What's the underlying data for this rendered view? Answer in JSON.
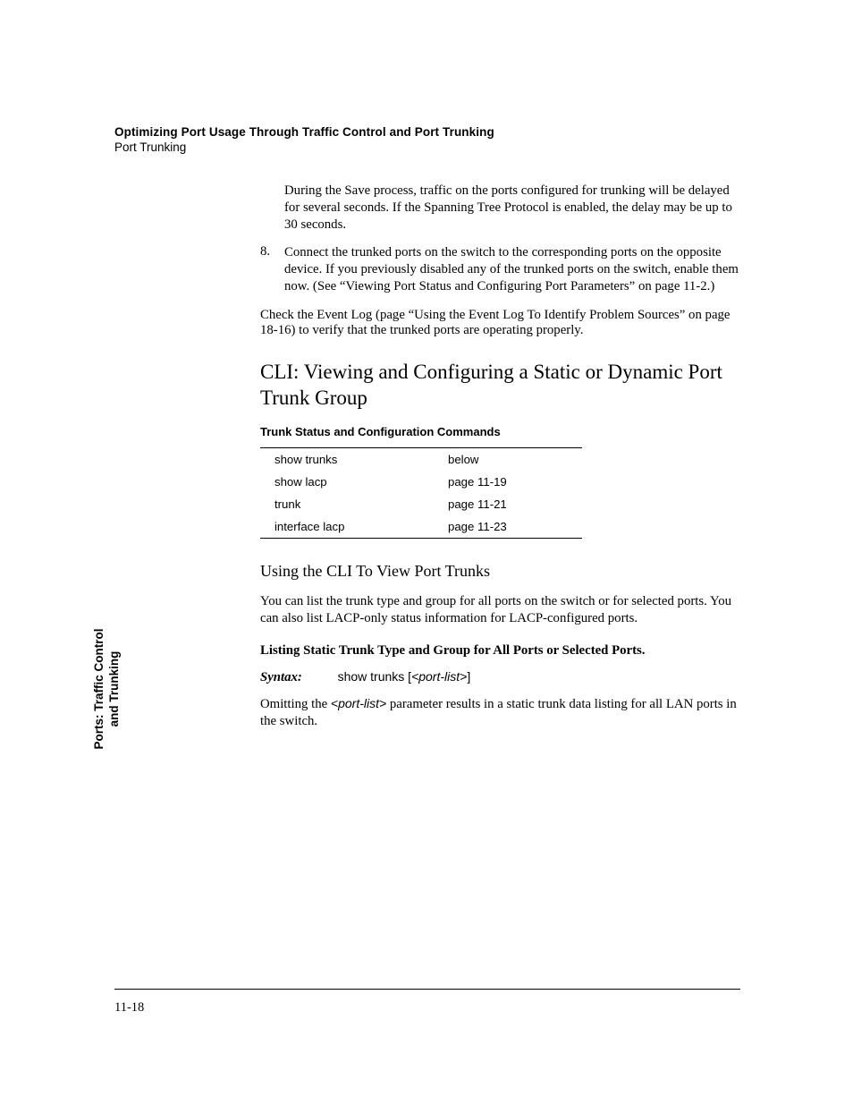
{
  "header": {
    "chapter_title": "Optimizing Port Usage Through Traffic Control and Port Trunking",
    "section_label": "Port Trunking"
  },
  "body": {
    "save_note": "During the Save process, traffic on the ports configured for trunking will be delayed for several seconds. If the Spanning Tree Protocol is enabled, the delay may be up to 30 seconds.",
    "step8_num": "8.",
    "step8_text": "Connect the trunked ports on the switch to the corresponding ports on the opposite device. If you previously disabled any of the trunked ports on the switch, enable them now. (See “Viewing Port Status and Configur­ing Port Parameters” on page 11-2.)",
    "event_log_para": "Check the Event Log (page “Using the Event Log To Identify Problem Sources” on page 18-16) to verify that the trunked ports are operating properly.",
    "h2": "CLI: Viewing and Configuring a Static or Dynamic Port Trunk Group",
    "table_caption": "Trunk Status and Configuration Commands",
    "table": {
      "rows": [
        {
          "cmd": "show trunks",
          "ref": "below"
        },
        {
          "cmd": "show lacp",
          "ref": "page 11-19"
        },
        {
          "cmd": "trunk",
          "ref": "page 11-21"
        },
        {
          "cmd": "interface lacp",
          "ref": "page 11-23"
        }
      ],
      "border_color": "#000000",
      "font_family": "Arial",
      "font_size_pt": 10
    },
    "h3": "Using the CLI To View Port Trunks",
    "intro_para": "You can list the trunk type and group for all ports on the switch or for selected ports. You can also list LACP-only status information for LACP-configured ports.",
    "listing_heading": "Listing Static Trunk Type and Group for All Ports or Selected Ports.",
    "syntax_label": "Syntax:",
    "syntax_cmd": "show trunks [",
    "syntax_arg": "<port-list>",
    "syntax_close": "]",
    "omit_para_pre": "Omitting the ",
    "omit_para_arg": "<port-list>",
    "omit_para_post": " parameter results in a static trunk data listing for all LAN ports in the switch."
  },
  "side_tab": {
    "line1": "Ports: Traffic Control",
    "line2": "and Trunking"
  },
  "footer": {
    "page_number": "11-18"
  },
  "colors": {
    "text": "#000000",
    "background": "#ffffff",
    "rule": "#000000"
  },
  "typography": {
    "body_font": "New Century Schoolbook",
    "sans_font": "Arial",
    "body_size_pt": 11,
    "h2_size_pt": 17,
    "h3_size_pt": 14,
    "header_bold_size_pt": 10
  }
}
